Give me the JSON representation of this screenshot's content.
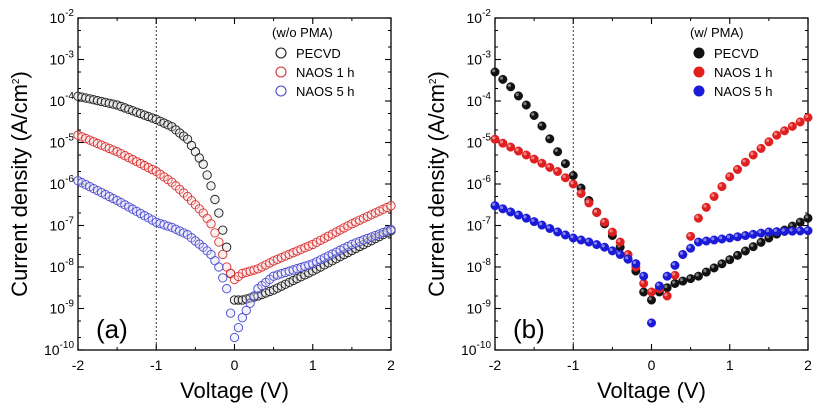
{
  "chart_data": [
    {
      "type": "scatter",
      "panel_label": "(a)",
      "legend_title": "(w/o PMA)",
      "legend_placement": "top-right",
      "marker_fill": "hollow",
      "xlabel": "Voltage (V)",
      "ylabel": "Current density (A/cm²)",
      "ylabel_parts": [
        "Current density (A/cm",
        "2",
        ")"
      ],
      "xlim": [
        -2,
        2
      ],
      "ylim": [
        1e-10,
        0.01
      ],
      "yscale": "log",
      "xticks": [
        -2,
        -1,
        0,
        1,
        2
      ],
      "xtick_labels": [
        "-2",
        "-1",
        "0",
        "1",
        "2"
      ],
      "yticks": [
        1e-10,
        1e-09,
        1e-08,
        1e-07,
        1e-06,
        1e-05,
        0.0001,
        0.001,
        0.01
      ],
      "ytick_base": "10",
      "ytick_exponents": [
        "-10",
        "-9",
        "-8",
        "-7",
        "-6",
        "-5",
        "-4",
        "-3",
        "-2"
      ],
      "reference_line_x": -1,
      "series": [
        {
          "name": "PECVD",
          "color": "#1a1a1a",
          "points": [
            [
              -2,
              0.00013
            ],
            [
              -1.5,
              8e-05
            ],
            [
              -1.0,
              3.6e-05
            ],
            [
              -0.8,
              2.4e-05
            ],
            [
              -0.6,
              1.2e-05
            ],
            [
              -0.4,
              3e-06
            ],
            [
              -0.3,
              9e-07
            ],
            [
              -0.2,
              2e-07
            ],
            [
              -0.1,
              3e-08
            ],
            [
              0.0,
              1.6e-09
            ],
            [
              0.1,
              1.6e-09
            ],
            [
              0.3,
              2e-09
            ],
            [
              0.5,
              2.8e-09
            ],
            [
              1.0,
              8e-09
            ],
            [
              1.5,
              2.5e-08
            ],
            [
              2.0,
              7.5e-08
            ]
          ]
        },
        {
          "name": "NAOS 1 h",
          "color": "#d93030",
          "points": [
            [
              -2,
              1.5e-05
            ],
            [
              -1.5,
              6e-06
            ],
            [
              -1.0,
              2e-06
            ],
            [
              -0.8,
              1.1e-06
            ],
            [
              -0.6,
              5e-07
            ],
            [
              -0.4,
              2e-07
            ],
            [
              -0.3,
              1.1e-07
            ],
            [
              -0.2,
              4e-08
            ],
            [
              -0.1,
              1e-08
            ],
            [
              0.0,
              5e-09
            ],
            [
              0.1,
              7e-09
            ],
            [
              0.3,
              9e-09
            ],
            [
              0.5,
              1.4e-08
            ],
            [
              1.0,
              3.5e-08
            ],
            [
              1.5,
              1.1e-07
            ],
            [
              2.0,
              3e-07
            ]
          ]
        },
        {
          "name": "NAOS 5 h",
          "color": "#4a4ad0",
          "points": [
            [
              -2,
              1.2e-06
            ],
            [
              -1.5,
              4e-07
            ],
            [
              -1.0,
              1.2e-07
            ],
            [
              -0.8,
              9e-08
            ],
            [
              -0.6,
              6e-08
            ],
            [
              -0.4,
              3e-08
            ],
            [
              -0.3,
              2e-08
            ],
            [
              -0.2,
              1e-08
            ],
            [
              -0.1,
              3e-09
            ],
            [
              0.0,
              2e-10
            ],
            [
              0.1,
              6e-10
            ],
            [
              0.3,
              3e-09
            ],
            [
              0.5,
              6e-09
            ],
            [
              1.0,
              1.2e-08
            ],
            [
              1.5,
              3.5e-08
            ],
            [
              2.0,
              8e-08
            ]
          ]
        }
      ]
    },
    {
      "type": "scatter",
      "panel_label": "(b)",
      "legend_title": "(w/ PMA)",
      "legend_placement": "top-right",
      "marker_fill": "filled",
      "xlabel": "Voltage (V)",
      "ylabel": "Current density (A/cm²)",
      "ylabel_parts": [
        "Current density (A/cm",
        "2",
        ")"
      ],
      "xlim": [
        -2,
        2
      ],
      "ylim": [
        1e-10,
        0.01
      ],
      "yscale": "log",
      "xticks": [
        -2,
        -1,
        0,
        1,
        2
      ],
      "xtick_labels": [
        "-2",
        "-1",
        "0",
        "1",
        "2"
      ],
      "yticks": [
        1e-10,
        1e-09,
        1e-08,
        1e-07,
        1e-06,
        1e-05,
        0.0001,
        0.001,
        0.01
      ],
      "ytick_base": "10",
      "ytick_exponents": [
        "-10",
        "-9",
        "-8",
        "-7",
        "-6",
        "-5",
        "-4",
        "-3",
        "-2"
      ],
      "reference_line_x": -1,
      "series": [
        {
          "name": "PECVD",
          "color": "#111111",
          "points": [
            [
              -2,
              0.0005
            ],
            [
              -1.8,
              0.00022
            ],
            [
              -1.6,
              8e-05
            ],
            [
              -1.4,
              2.5e-05
            ],
            [
              -1.2,
              6e-06
            ],
            [
              -1.0,
              1.6e-06
            ],
            [
              -0.8,
              4e-07
            ],
            [
              -0.6,
              1.1e-07
            ],
            [
              -0.4,
              3e-08
            ],
            [
              -0.2,
              8e-09
            ],
            [
              -0.1,
              2.5e-09
            ],
            [
              0.0,
              1.6e-09
            ],
            [
              0.1,
              2.5e-09
            ],
            [
              0.3,
              4e-09
            ],
            [
              0.6,
              6e-09
            ],
            [
              1.0,
              1.5e-08
            ],
            [
              1.5,
              5e-08
            ],
            [
              2.0,
              1.5e-07
            ]
          ]
        },
        {
          "name": "NAOS 1 h",
          "color": "#e02020",
          "points": [
            [
              -2,
              1.2e-05
            ],
            [
              -1.6,
              5e-06
            ],
            [
              -1.2,
              2e-06
            ],
            [
              -1.0,
              1e-06
            ],
            [
              -0.8,
              3.5e-07
            ],
            [
              -0.6,
              1.2e-07
            ],
            [
              -0.4,
              4e-08
            ],
            [
              -0.2,
              1e-08
            ],
            [
              -0.1,
              4e-09
            ],
            [
              0.0,
              2.5e-09
            ],
            [
              0.1,
              3e-09
            ],
            [
              0.2,
              2e-09
            ],
            [
              0.4,
              2e-08
            ],
            [
              0.6,
              1.5e-07
            ],
            [
              0.8,
              5e-07
            ],
            [
              1.0,
              1.5e-06
            ],
            [
              1.3,
              5e-06
            ],
            [
              1.6,
              1.5e-05
            ],
            [
              2.0,
              4e-05
            ]
          ]
        },
        {
          "name": "NAOS 5 h",
          "color": "#1a1ad8",
          "points": [
            [
              -2,
              3e-07
            ],
            [
              -1.6,
              1.5e-07
            ],
            [
              -1.2,
              7e-08
            ],
            [
              -1.0,
              5e-08
            ],
            [
              -0.8,
              4e-08
            ],
            [
              -0.6,
              3e-08
            ],
            [
              -0.4,
              2e-08
            ],
            [
              -0.2,
              1.2e-08
            ],
            [
              -0.1,
              6e-09
            ],
            [
              0.0,
              4.5e-10
            ],
            [
              0.1,
              3.5e-09
            ],
            [
              0.2,
              6e-09
            ],
            [
              0.4,
              2e-08
            ],
            [
              0.6,
              4e-08
            ],
            [
              1.0,
              5e-08
            ],
            [
              1.5,
              7e-08
            ],
            [
              2.0,
              7.5e-08
            ]
          ]
        }
      ]
    }
  ]
}
